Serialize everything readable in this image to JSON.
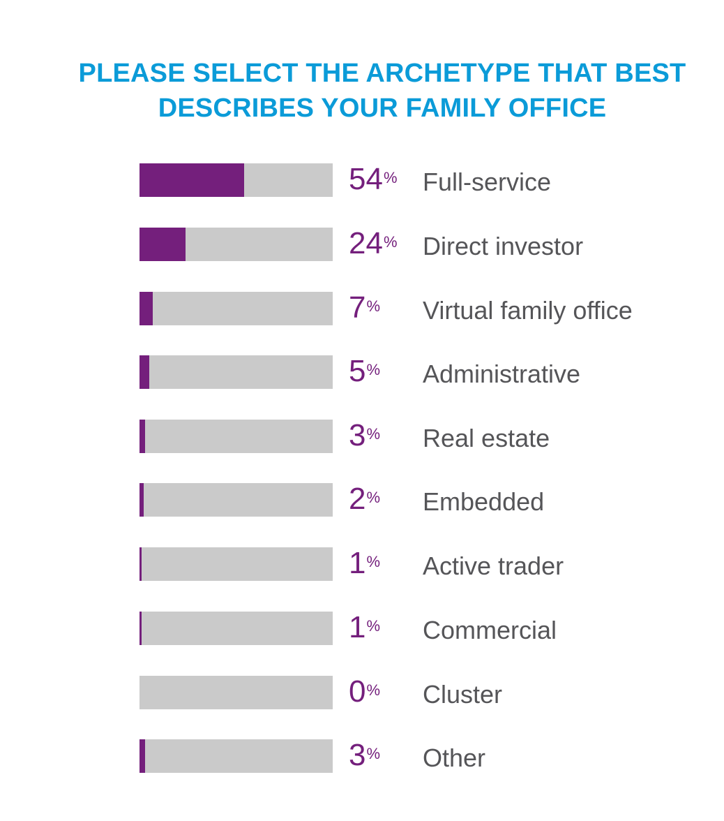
{
  "chart_data": {
    "type": "bar",
    "orientation": "horizontal",
    "title": "PLEASE SELECT THE ARCHETYPE THAT BEST DESCRIBES YOUR FAMILY OFFICE",
    "title_lines": [
      "PLEASE SELECT THE ARCHETYPE THAT BEST",
      "DESCRIBES YOUR FAMILY OFFICE"
    ],
    "categories": [
      "Full-service",
      "Direct investor",
      "Virtual family office",
      "Administrative",
      "Real estate",
      "Embedded",
      "Active trader",
      "Commercial",
      "Cluster",
      "Other"
    ],
    "values": [
      54,
      24,
      7,
      5,
      3,
      2,
      1,
      1,
      0,
      3
    ],
    "unit": "%",
    "xlim": [
      0,
      100
    ],
    "grid": false,
    "legend": "none"
  },
  "colors": {
    "title": "#0b9bd8",
    "fill": "#741f7c",
    "track": "#cacaca",
    "value_text": "#741f7c",
    "label_text": "#555558"
  }
}
